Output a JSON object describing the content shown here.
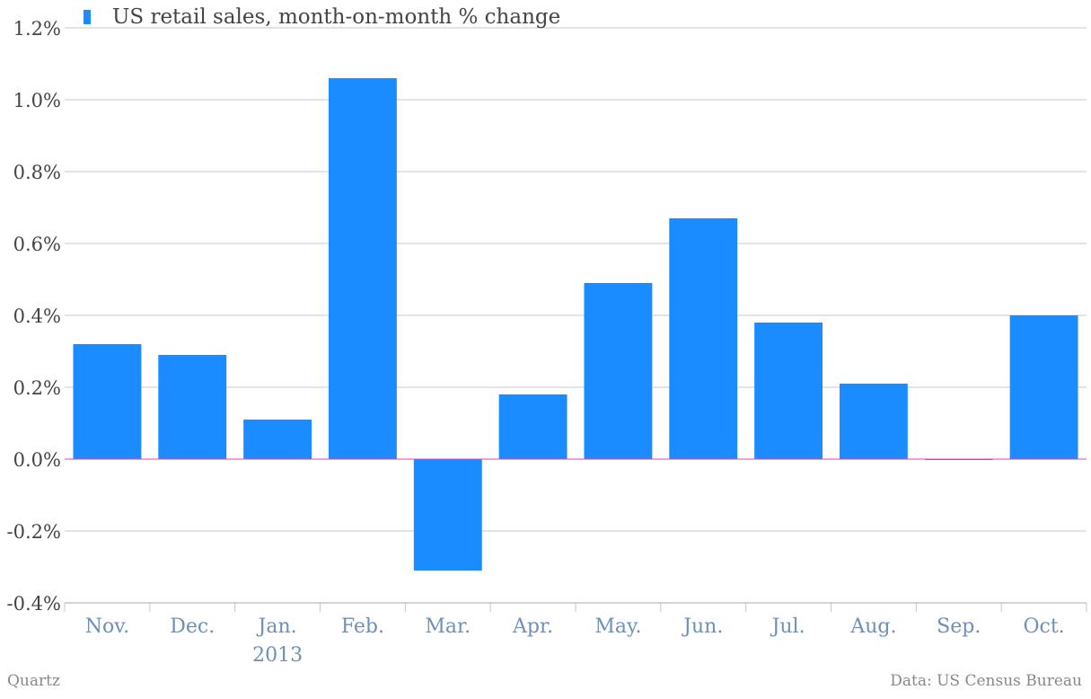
{
  "chart_data": {
    "type": "bar",
    "legend": "US retail sales, month-on-month % change",
    "categories": [
      "Nov.",
      "Dec.",
      "Jan.",
      "Feb.",
      "Mar.",
      "Apr.",
      "May.",
      "Jun.",
      "Jul.",
      "Aug.",
      "Sep.",
      "Oct."
    ],
    "category_sublabels": [
      "",
      "",
      "2013",
      "",
      "",
      "",
      "",
      "",
      "",
      "",
      "",
      ""
    ],
    "values": [
      0.32,
      0.29,
      0.11,
      1.06,
      -0.31,
      0.18,
      0.49,
      0.67,
      0.38,
      0.21,
      0.0,
      0.4
    ],
    "ylim": [
      -0.4,
      1.2
    ],
    "yticks": [
      -0.4,
      -0.2,
      0.0,
      0.2,
      0.4,
      0.6,
      0.8,
      1.0,
      1.2
    ],
    "ytick_labels": [
      "-0.4%",
      "-0.2%",
      "0.0%",
      "0.2%",
      "0.4%",
      "0.6%",
      "0.8%",
      "1.0%",
      "1.2%"
    ],
    "grid": true,
    "legend_position": "top-left",
    "bar_color": "#1a8cff",
    "zero_line_color": "#e040c0"
  },
  "footer": {
    "source_left": "Quartz",
    "source_right": "Data: US Census Bureau"
  }
}
